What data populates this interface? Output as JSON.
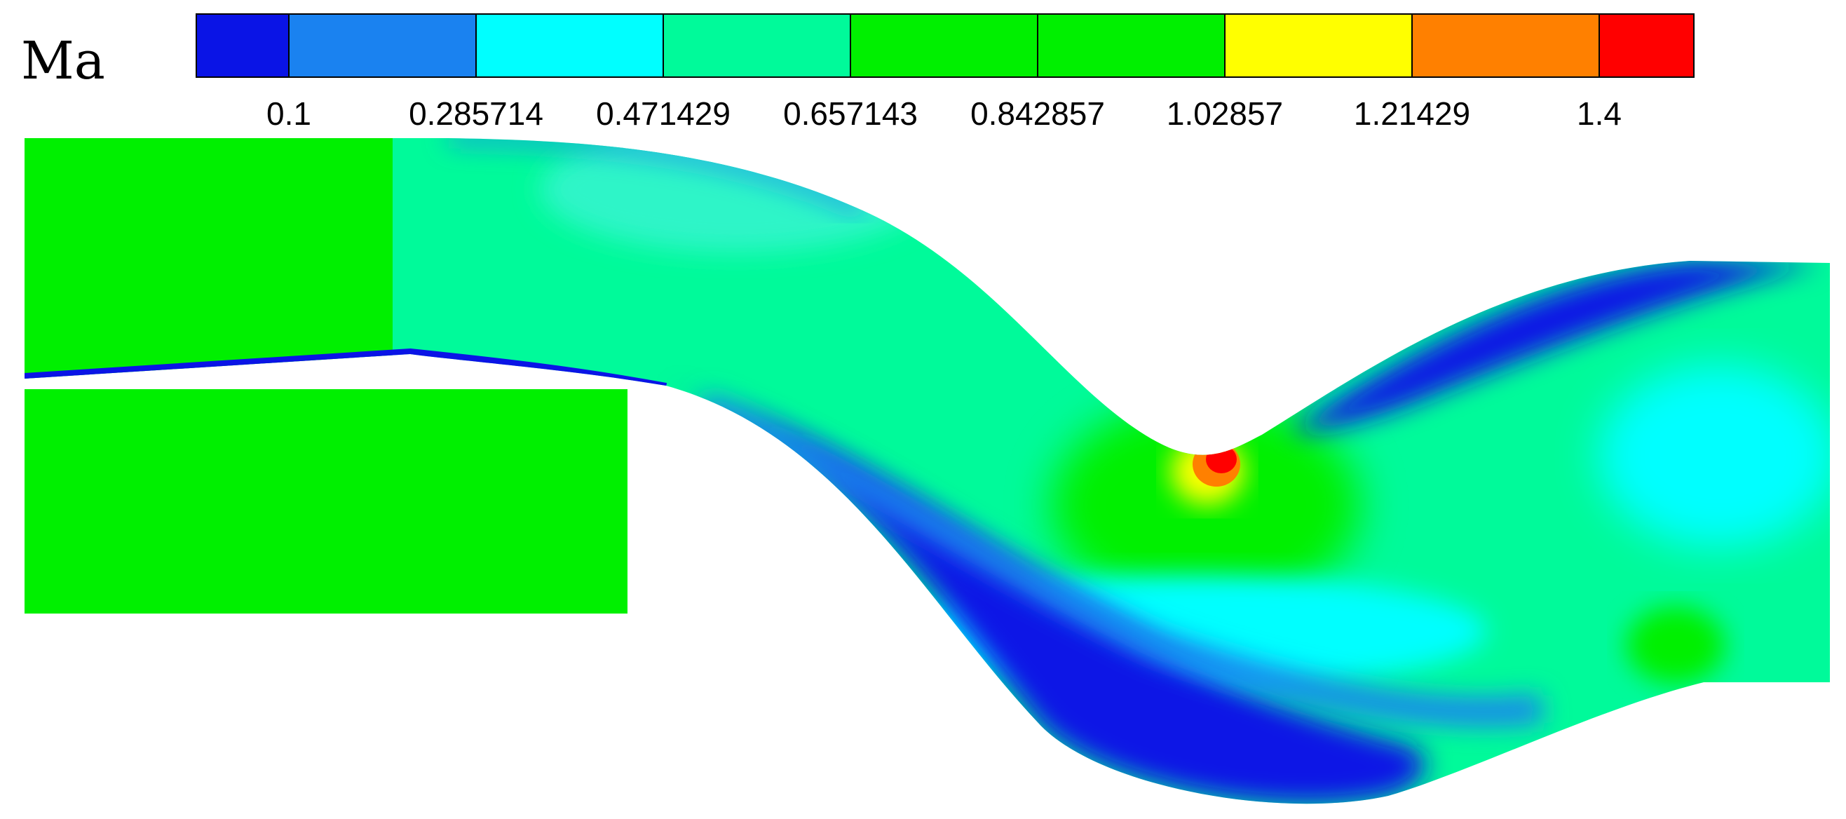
{
  "chart_data": {
    "type": "heatmap",
    "title": "Ma",
    "colorbar": {
      "levels": [
        {
          "label": "0.1",
          "color": "#0a14e6"
        },
        {
          "label": "0.285714",
          "color": "#1a82f0"
        },
        {
          "label": "0.471429",
          "color": "#00ffff"
        },
        {
          "label": "0.657143",
          "color": "#00fa9a"
        },
        {
          "label": "0.842857",
          "color": "#00f000"
        },
        {
          "label": "1.02857",
          "color": "#00f000"
        },
        {
          "label": "1.21429",
          "color": "#ffff00"
        },
        {
          "label": "1.4",
          "color": "#ff8000"
        }
      ],
      "top_color": "#ff0000",
      "min": 0.1,
      "max": 1.4,
      "position": "top"
    },
    "annotations": {
      "peak_region": "throat on upper wall, Ma ≈ 1.4",
      "inlet_region": "uniform Ma ≈ 0.84–1.03",
      "low_speed_region": "lower wall separation, Ma ≈ 0.1"
    }
  }
}
